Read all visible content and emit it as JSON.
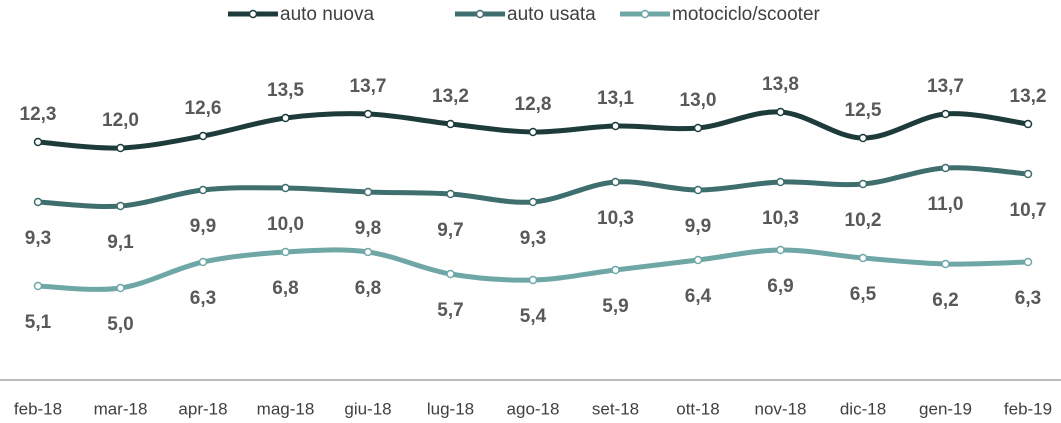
{
  "chart_data": {
    "type": "line",
    "categories": [
      "feb-18",
      "mar-18",
      "apr-18",
      "mag-18",
      "giu-18",
      "lug-18",
      "ago-18",
      "set-18",
      "ott-18",
      "nov-18",
      "dic-18",
      "gen-19",
      "feb-19"
    ],
    "series": [
      {
        "name": "auto nuova",
        "color": "#1e3b3b",
        "values": [
          12.3,
          12.0,
          12.6,
          13.5,
          13.7,
          13.2,
          12.8,
          13.1,
          13.0,
          13.8,
          12.5,
          13.7,
          13.2
        ],
        "value_labels": [
          "12,3",
          "12,0",
          "12,6",
          "13,5",
          "13,7",
          "13,2",
          "12,8",
          "13,1",
          "13,0",
          "13,8",
          "12,5",
          "13,7",
          "13,2"
        ]
      },
      {
        "name": "auto usata",
        "color": "#3f6e6e",
        "values": [
          9.3,
          9.1,
          9.9,
          10.0,
          9.8,
          9.7,
          9.3,
          10.3,
          9.9,
          10.3,
          10.2,
          11.0,
          10.7
        ],
        "value_labels": [
          "9,3",
          "9,1",
          "9,9",
          "10,0",
          "9,8",
          "9,7",
          "9,3",
          "10,3",
          "9,9",
          "10,3",
          "10,2",
          "11,0",
          "10,7"
        ]
      },
      {
        "name": "motociclo/scooter",
        "color": "#6fa7a7",
        "values": [
          5.1,
          5.0,
          6.3,
          6.8,
          6.8,
          5.7,
          5.4,
          5.9,
          6.4,
          6.9,
          6.5,
          6.2,
          6.3
        ],
        "value_labels": [
          "5,1",
          "5,0",
          "6,3",
          "6,8",
          "6,8",
          "5,7",
          "5,4",
          "5,9",
          "6,4",
          "6,9",
          "6,5",
          "6,2",
          "6,3"
        ]
      }
    ]
  }
}
